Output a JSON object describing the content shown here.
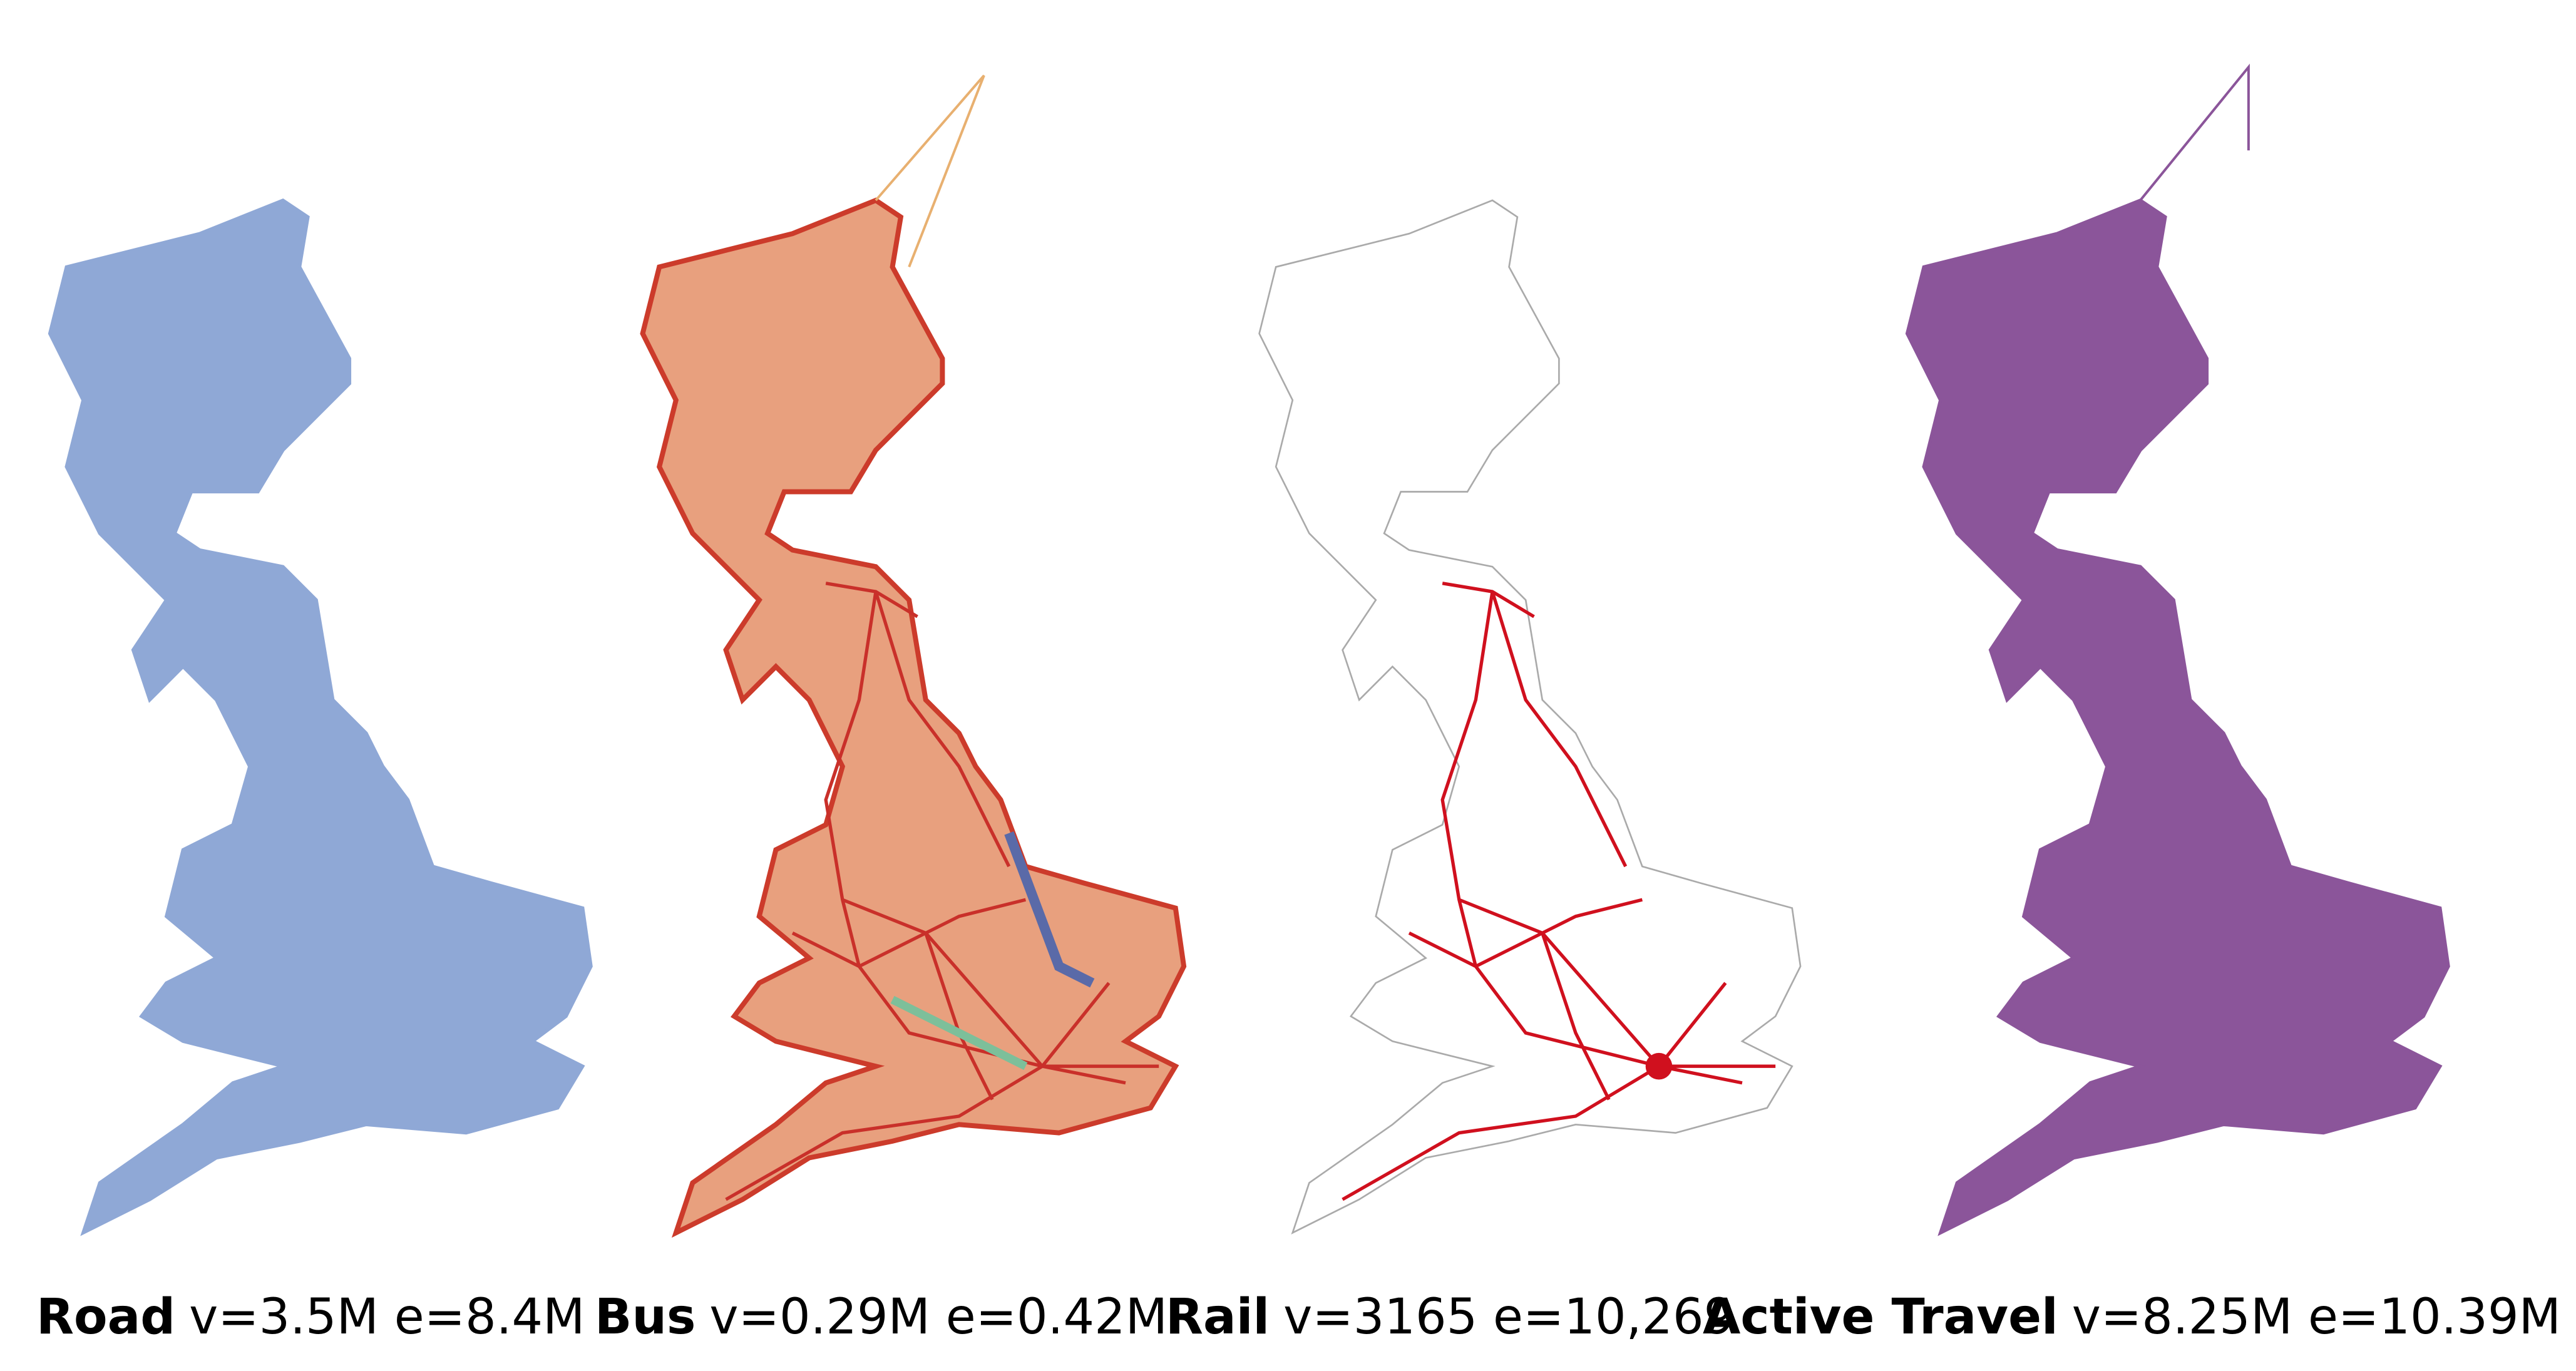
{
  "panels": [
    {
      "label": "Road",
      "stats": "v=3.5M e=8.4M"
    },
    {
      "label": "Bus",
      "stats": "v=0.29M e=0.42M"
    },
    {
      "label": "Rail",
      "stats": "v=3165 e=10,269"
    },
    {
      "label": "Active Travel",
      "stats": "v=8.25M e=10.39M"
    }
  ]
}
